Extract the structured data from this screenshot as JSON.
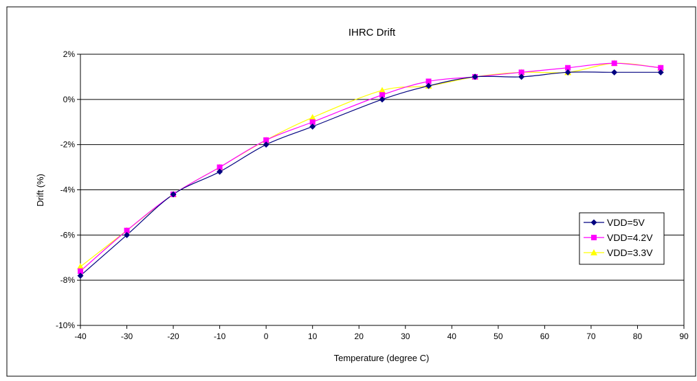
{
  "chart_data": {
    "type": "line",
    "title": "IHRC Drift",
    "xlabel": "Temperature (degree C)",
    "ylabel": "Drift (%)",
    "xlim": [
      -40,
      90
    ],
    "ylim": [
      -10,
      2
    ],
    "x_ticks": [
      -40,
      -30,
      -20,
      -10,
      0,
      10,
      20,
      30,
      40,
      50,
      60,
      70,
      80,
      90
    ],
    "x_tick_labels": [
      "-40",
      "-30",
      "-20",
      "-10",
      "0",
      "10",
      "20",
      "30",
      "40",
      "50",
      "60",
      "70",
      "80",
      "90"
    ],
    "y_ticks": [
      -10,
      -8,
      -6,
      -4,
      -2,
      0,
      2
    ],
    "y_tick_labels": [
      "-10%",
      "-8%",
      "-6%",
      "-4%",
      "-2%",
      "0%",
      "2%"
    ],
    "grid": "horizontal",
    "legend_position": "right",
    "x": [
      -40,
      -30,
      -20,
      -10,
      0,
      10,
      25,
      35,
      45,
      55,
      65,
      75,
      85
    ],
    "series": [
      {
        "name": "VDD=5V",
        "color": "#000080",
        "marker": "diamond",
        "values": [
          -7.8,
          -6.0,
          -4.2,
          -3.2,
          -2.0,
          -1.2,
          0.0,
          0.6,
          1.0,
          1.0,
          1.2,
          1.2,
          1.2
        ]
      },
      {
        "name": "VDD=4.2V",
        "color": "#FF00FF",
        "marker": "square",
        "values": [
          -7.6,
          -5.8,
          -4.2,
          -3.0,
          -1.8,
          -1.0,
          0.2,
          0.8,
          1.0,
          1.2,
          1.4,
          1.6,
          1.4
        ]
      },
      {
        "name": "VDD=3.3V",
        "color": "#FFFF00",
        "marker": "triangle",
        "values": [
          -7.4,
          -5.8,
          -4.2,
          -3.0,
          -1.8,
          -0.8,
          0.4,
          0.6,
          1.0,
          1.2,
          1.2,
          1.6,
          1.4
        ]
      }
    ]
  }
}
